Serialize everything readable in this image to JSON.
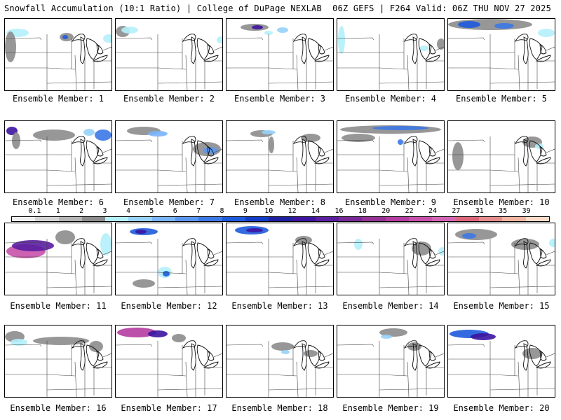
{
  "header": {
    "left": "Snowfall Accumulation (10:1 Ratio) | College of DuPage NEXLAB",
    "right": "06Z GEFS | F264 Valid: 06Z THU NOV 27 2025"
  },
  "colorbar": {
    "labels": [
      "0.1",
      "1",
      "2",
      "3",
      "4",
      "5",
      "6",
      "7",
      "8",
      "9",
      "10",
      "12",
      "14",
      "16",
      "18",
      "20",
      "22",
      "24",
      "27",
      "31",
      "35",
      "39"
    ],
    "colors": [
      "#f0f0f0",
      "#d2d2d2",
      "#b4b4b4",
      "#8c8c8c",
      "#b4f0fa",
      "#96d2fa",
      "#78b4fa",
      "#5a96f0",
      "#3c78e6",
      "#1e5adc",
      "#143cc8",
      "#1e1ea0",
      "#3c14a0",
      "#5a1ea0",
      "#782896",
      "#963296",
      "#b43ca0",
      "#c850aa",
      "#d264b4",
      "#dc6478",
      "#e68c8c",
      "#f0b4a0",
      "#fadcc8"
    ]
  },
  "members": [
    {
      "label": "Ensemble Member: 1"
    },
    {
      "label": "Ensemble Member: 2"
    },
    {
      "label": "Ensemble Member: 3"
    },
    {
      "label": "Ensemble Member: 4"
    },
    {
      "label": "Ensemble Member: 5"
    },
    {
      "label": "Ensemble Member: 6"
    },
    {
      "label": "Ensemble Member: 7"
    },
    {
      "label": "Ensemble Member: 8"
    },
    {
      "label": "Ensemble Member: 9"
    },
    {
      "label": "Ensemble Member: 10"
    },
    {
      "label": "Ensemble Member: 11"
    },
    {
      "label": "Ensemble Member: 12"
    },
    {
      "label": "Ensemble Member: 13"
    },
    {
      "label": "Ensemble Member: 14"
    },
    {
      "label": "Ensemble Member: 15"
    },
    {
      "label": "Ensemble Member: 16"
    },
    {
      "label": "Ensemble Member: 17"
    },
    {
      "label": "Ensemble Member: 18"
    },
    {
      "label": "Ensemble Member: 19"
    },
    {
      "label": "Ensemble Member: 20"
    }
  ]
}
